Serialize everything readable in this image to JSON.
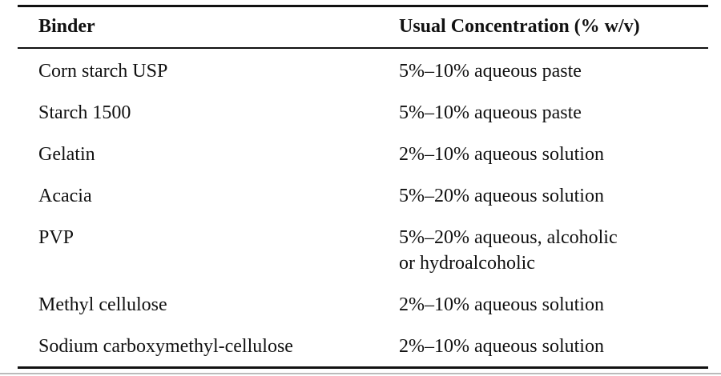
{
  "table": {
    "headers": [
      "Binder",
      "Usual Concentration (% w/v)"
    ],
    "rows": [
      [
        "Corn starch USP",
        "5%–10% aqueous paste"
      ],
      [
        "Starch 1500",
        "5%–10% aqueous paste"
      ],
      [
        "Gelatin",
        "2%–10% aqueous solution"
      ],
      [
        "Acacia",
        "5%–20% aqueous solution"
      ],
      [
        "PVP",
        [
          "5%–20% aqueous, alcoholic",
          "or hydroalcoholic"
        ]
      ],
      [
        "Methyl cellulose",
        "2%–10% aqueous solution"
      ],
      [
        "Sodium carboxymethyl-cellulose",
        "2%–10% aqueous solution"
      ]
    ]
  }
}
